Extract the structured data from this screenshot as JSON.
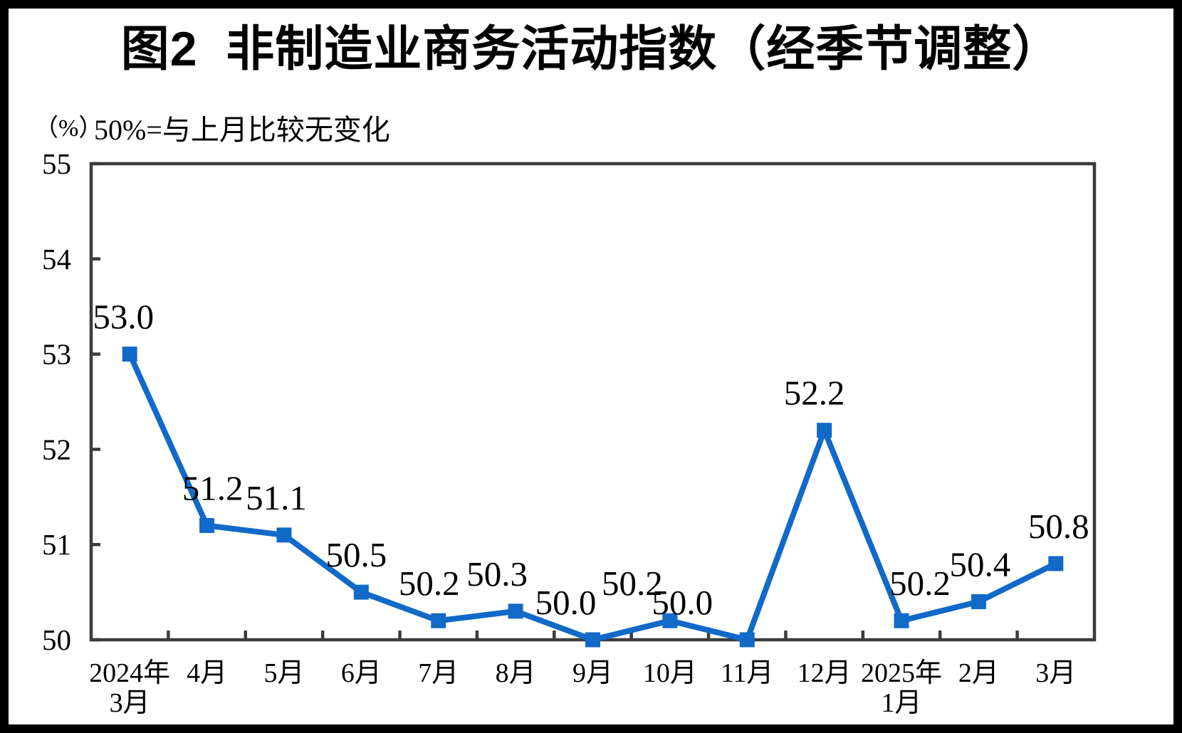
{
  "title": "图2  非制造业商务活动指数（经季节调整）",
  "subtitle": {
    "unit": "（%）",
    "note": "50%=与上月比较无变化"
  },
  "colors": {
    "line": "#1169C8",
    "axis": "#3B3B3B",
    "text": "#000000",
    "background": "#FFFFFF",
    "frame": "#000000"
  },
  "chart_data": {
    "type": "line",
    "title": "图2 非制造业商务活动指数（经季节调整）",
    "unit_label": "（%）",
    "reference_note": "50%=与上月比较无变化",
    "categories": [
      "2024年3月",
      "4月",
      "5月",
      "6月",
      "7月",
      "8月",
      "9月",
      "10月",
      "11月",
      "12月",
      "2025年1月",
      "2月",
      "3月"
    ],
    "category_lines": [
      [
        "2024年",
        "3月"
      ],
      [
        "4月"
      ],
      [
        "5月"
      ],
      [
        "6月"
      ],
      [
        "7月"
      ],
      [
        "8月"
      ],
      [
        "9月"
      ],
      [
        "10月"
      ],
      [
        "11月"
      ],
      [
        "12月"
      ],
      [
        "2025年",
        "1月"
      ],
      [
        "2月"
      ],
      [
        "3月"
      ]
    ],
    "series": [
      {
        "name": "非制造业商务活动指数",
        "values": [
          53.0,
          51.2,
          51.1,
          50.5,
          50.2,
          50.3,
          50.0,
          50.2,
          50.0,
          52.2,
          50.2,
          50.4,
          50.8
        ]
      }
    ],
    "data_labels": [
      "53.0",
      "51.2",
      "51.1",
      "50.5",
      "50.2",
      "50.3",
      "50.0",
      "50.2",
      "50.0",
      "52.2",
      "50.2",
      "50.4",
      "50.8"
    ],
    "ylim": [
      50,
      55
    ],
    "yticks": [
      50,
      51,
      52,
      53,
      54,
      55
    ],
    "xlabel": "",
    "ylabel": "",
    "grid": false,
    "legend_position": "none",
    "marker": "square",
    "label_position": "above",
    "label_offsets_x": [
      -9,
      8,
      -11,
      -7,
      -13,
      -26,
      -38,
      -53,
      -91,
      -14,
      26,
      2,
      4
    ]
  }
}
